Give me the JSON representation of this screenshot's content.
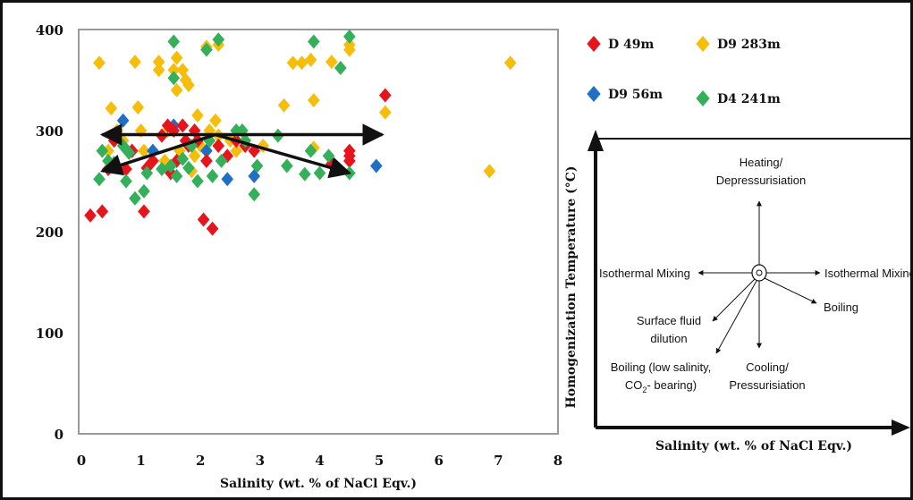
{
  "chart_data": [
    {
      "type": "scatter",
      "xlabel": "Salinity (wt. % of NaCl Eqv.)",
      "ylabel": "",
      "xlim": [
        0,
        8
      ],
      "ylim": [
        0,
        400
      ],
      "x_ticks": [
        "0",
        "1",
        "2",
        "3",
        "4",
        "5",
        "6",
        "7",
        "8"
      ],
      "y_ticks": [
        "0",
        "100",
        "200",
        "300",
        "400"
      ],
      "grid": false,
      "legend_position": "right",
      "series": [
        {
          "name": "D 49m",
          "color": "#e8141c",
          "points": [
            [
              0.15,
              216
            ],
            [
              0.35,
              220
            ],
            [
              0.45,
              262
            ],
            [
              0.55,
              290
            ],
            [
              0.75,
              262
            ],
            [
              0.85,
              280
            ],
            [
              1.05,
              220
            ],
            [
              1.1,
              263
            ],
            [
              1.2,
              270
            ],
            [
              1.35,
              295
            ],
            [
              1.45,
              305
            ],
            [
              1.5,
              258
            ],
            [
              1.55,
              300
            ],
            [
              1.6,
              270
            ],
            [
              1.7,
              305
            ],
            [
              1.75,
              290
            ],
            [
              1.8,
              285
            ],
            [
              1.9,
              300
            ],
            [
              1.95,
              290
            ],
            [
              2.05,
              212
            ],
            [
              2.1,
              270
            ],
            [
              2.2,
              203
            ],
            [
              2.3,
              285
            ],
            [
              2.45,
              275
            ],
            [
              2.6,
              290
            ],
            [
              2.75,
              285
            ],
            [
              2.9,
              280
            ],
            [
              4.2,
              267
            ],
            [
              4.5,
              270
            ],
            [
              4.5,
              275
            ],
            [
              4.5,
              280
            ],
            [
              5.1,
              335
            ]
          ]
        },
        {
          "name": "D9 283m",
          "color": "#f6be0b",
          "points": [
            [
              0.3,
              367
            ],
            [
              0.45,
              280
            ],
            [
              0.5,
              322
            ],
            [
              0.6,
              300
            ],
            [
              0.7,
              290
            ],
            [
              0.8,
              278
            ],
            [
              0.9,
              368
            ],
            [
              0.95,
              323
            ],
            [
              1.0,
              300
            ],
            [
              1.05,
              280
            ],
            [
              1.3,
              368
            ],
            [
              1.3,
              360
            ],
            [
              1.4,
              270
            ],
            [
              1.45,
              300
            ],
            [
              1.55,
              360
            ],
            [
              1.6,
              372
            ],
            [
              1.6,
              340
            ],
            [
              1.65,
              280
            ],
            [
              1.7,
              360
            ],
            [
              1.75,
              350
            ],
            [
              1.8,
              345
            ],
            [
              1.85,
              260
            ],
            [
              1.9,
              275
            ],
            [
              1.95,
              315
            ],
            [
              2.0,
              285
            ],
            [
              2.1,
              383
            ],
            [
              2.15,
              300
            ],
            [
              2.25,
              310
            ],
            [
              2.3,
              385
            ],
            [
              2.3,
              295
            ],
            [
              2.5,
              290
            ],
            [
              2.6,
              280
            ],
            [
              3.05,
              285
            ],
            [
              3.4,
              325
            ],
            [
              3.55,
              367
            ],
            [
              3.7,
              367
            ],
            [
              3.85,
              370
            ],
            [
              3.9,
              330
            ],
            [
              3.9,
              283
            ],
            [
              4.2,
              368
            ],
            [
              4.5,
              380
            ],
            [
              4.5,
              385
            ],
            [
              5.1,
              318
            ],
            [
              6.85,
              260
            ],
            [
              7.2,
              367
            ]
          ]
        },
        {
          "name": "D9 56m",
          "color": "#1f6fc5",
          "points": [
            [
              0.7,
              310
            ],
            [
              0.85,
              280
            ],
            [
              1.2,
              280
            ],
            [
              1.55,
              305
            ],
            [
              2.1,
              280
            ],
            [
              2.45,
              252
            ],
            [
              2.75,
              285
            ],
            [
              2.9,
              255
            ],
            [
              4.95,
              265
            ]
          ]
        },
        {
          "name": "D4 241m",
          "color": "#34b05a",
          "points": [
            [
              0.3,
              252
            ],
            [
              0.35,
              280
            ],
            [
              0.45,
              270
            ],
            [
              0.55,
              268
            ],
            [
              0.7,
              285
            ],
            [
              0.75,
              250
            ],
            [
              0.8,
              278
            ],
            [
              0.9,
              233
            ],
            [
              1.05,
              240
            ],
            [
              1.1,
              258
            ],
            [
              1.35,
              262
            ],
            [
              1.5,
              265
            ],
            [
              1.55,
              388
            ],
            [
              1.55,
              352
            ],
            [
              1.6,
              255
            ],
            [
              1.7,
              272
            ],
            [
              1.8,
              263
            ],
            [
              1.85,
              285
            ],
            [
              1.95,
              250
            ],
            [
              2.1,
              380
            ],
            [
              2.15,
              290
            ],
            [
              2.2,
              255
            ],
            [
              2.3,
              390
            ],
            [
              2.35,
              270
            ],
            [
              2.6,
              300
            ],
            [
              2.7,
              300
            ],
            [
              2.75,
              290
            ],
            [
              2.9,
              237
            ],
            [
              2.95,
              265
            ],
            [
              3.3,
              295
            ],
            [
              3.45,
              265
            ],
            [
              3.75,
              257
            ],
            [
              3.85,
              280
            ],
            [
              3.9,
              388
            ],
            [
              4.0,
              258
            ],
            [
              4.15,
              275
            ],
            [
              4.35,
              362
            ],
            [
              4.5,
              258
            ],
            [
              4.5,
              393
            ]
          ]
        }
      ],
      "arrows": [
        {
          "from": [
            2.25,
            296
          ],
          "to": [
            5.05,
            296
          ]
        },
        {
          "from": [
            2.25,
            296
          ],
          "to": [
            0.35,
            296
          ]
        },
        {
          "from": [
            2.25,
            296
          ],
          "to": [
            0.35,
            260
          ]
        },
        {
          "from": [
            2.25,
            296
          ],
          "to": [
            4.5,
            258
          ]
        }
      ]
    }
  ],
  "diagram": {
    "ylabel": "Homogenization Temperature (°C)",
    "xlabel": "Salinity (wt. % of NaCl Eqv.)",
    "labels": {
      "heating_line1": "Heating/",
      "heating_line2": "Depressurisiation",
      "mixing_left": "Isothermal Mixing",
      "mixing_right": "Isothermal Mixing",
      "boiling": "Boiling",
      "surface_line1": "Surface fluid",
      "surface_line2": "dilution",
      "boiling_low_line1": "Boiling (low salinity,",
      "boiling_low_co2": "CO",
      "boiling_low_sub": "2",
      "boiling_low_rest": "- bearing)",
      "cooling_line1": "Cooling/",
      "cooling_line2": "Pressurisiation"
    }
  }
}
